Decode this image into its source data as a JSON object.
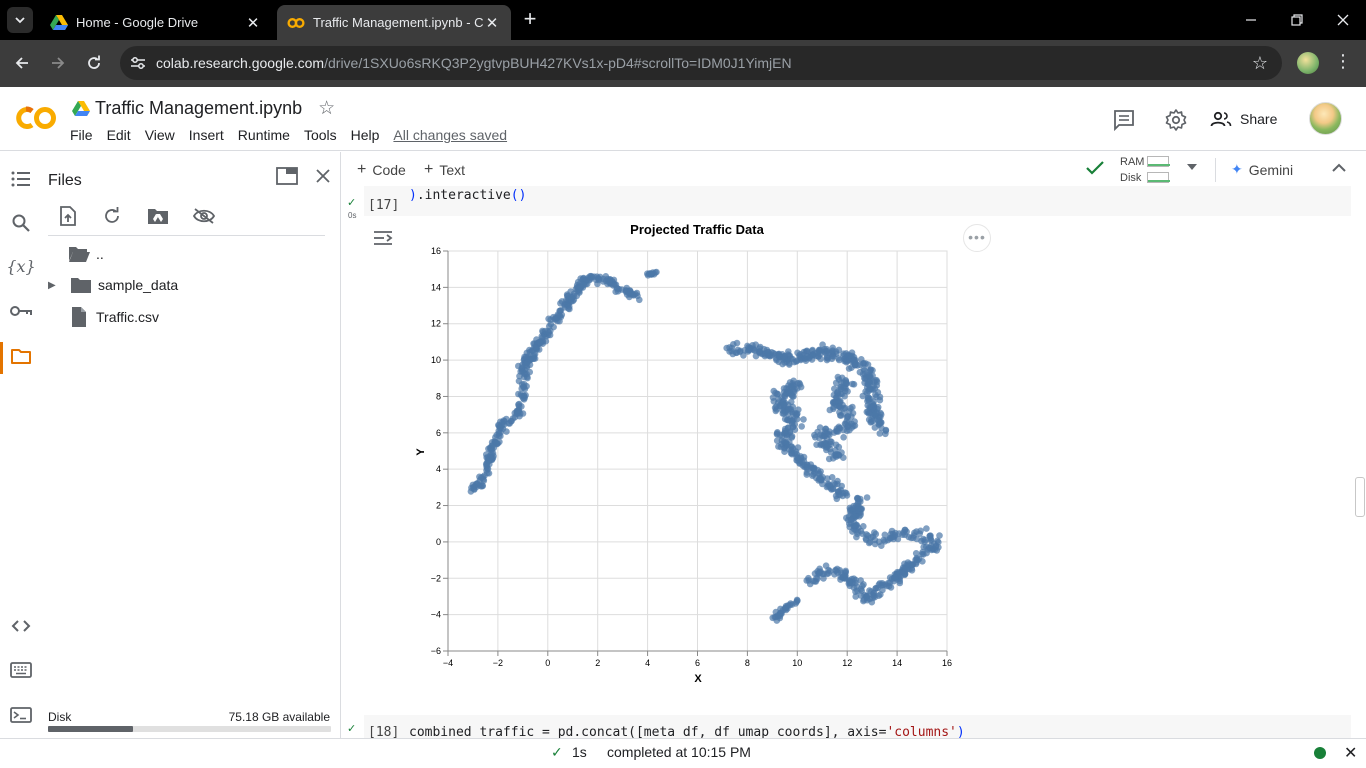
{
  "browser": {
    "tabs": [
      {
        "title": "Home - Google Drive",
        "icon": "google-drive-icon"
      },
      {
        "title": "Traffic Management.ipynb - Colab",
        "icon": "colab-icon",
        "active": true
      }
    ],
    "url_host": "colab.research.google.com",
    "url_path": "/drive/1SXUo6sRKQ3P2ygtvpBUH427KVs1x-pD4#scrollTo=IDM0J1YimjEN"
  },
  "colab": {
    "notebook_title": "Traffic Management.ipynb",
    "menu": [
      "File",
      "Edit",
      "View",
      "Insert",
      "Runtime",
      "Tools",
      "Help"
    ],
    "save_status": "All changes saved",
    "share_label": "Share"
  },
  "toolbar": {
    "code_label": "Code",
    "text_label": "Text",
    "ram_label": "RAM",
    "disk_label": "Disk",
    "gemini_label": "Gemini"
  },
  "files": {
    "title": "Files",
    "tree": [
      {
        "name": "..",
        "type": "folder-open"
      },
      {
        "name": "sample_data",
        "type": "folder"
      },
      {
        "name": "Traffic.csv",
        "type": "file"
      }
    ],
    "disk_label": "Disk",
    "disk_available": "75.18 GB available",
    "disk_used_fraction": 0.3
  },
  "cells": {
    "cell17": {
      "count": "[17]",
      "time": "0s",
      "code_tail": ").interactive()"
    },
    "cell18": {
      "count": "[18]",
      "code_a": "combined_traffic = pd.concat([meta_df, df_umap_coords], axis=",
      "code_str": "'columns'",
      "code_b": ")"
    }
  },
  "status": {
    "time": "1s",
    "completed": "completed at 10:15 PM"
  },
  "colors": {
    "point": "#4c78a8",
    "accent": "#e37400",
    "success": "#188038"
  },
  "chart_data": {
    "type": "scatter",
    "title": "Projected Traffic Data",
    "xlabel": "X",
    "ylabel": "Y",
    "xlim": [
      -4,
      16
    ],
    "ylim": [
      -6,
      16
    ],
    "xticks": [
      -4,
      -2,
      0,
      2,
      4,
      6,
      8,
      10,
      12,
      14,
      16
    ],
    "yticks": [
      -6,
      -4,
      -2,
      0,
      2,
      4,
      6,
      8,
      10,
      12,
      14,
      16
    ],
    "grid": true,
    "clusters": [
      {
        "path": [
          [
            -3.0,
            2.8
          ],
          [
            -2.6,
            3.5
          ],
          [
            -2.2,
            5.0
          ],
          [
            -1.8,
            6.5
          ],
          [
            -1.2,
            7.0
          ],
          [
            -1.0,
            8.0
          ],
          [
            -0.9,
            9.8
          ],
          [
            -0.3,
            11.0
          ],
          [
            0.4,
            12.5
          ],
          [
            1.1,
            13.7
          ],
          [
            1.7,
            14.6
          ],
          [
            2.4,
            14.3
          ],
          [
            3.3,
            13.7
          ],
          [
            3.8,
            13.4
          ]
        ],
        "spread": 0.32,
        "count": 360
      },
      {
        "path": [
          [
            4.0,
            14.7
          ],
          [
            4.3,
            14.8
          ]
        ],
        "spread": 0.12,
        "count": 14
      },
      {
        "path": [
          [
            7.3,
            10.6
          ],
          [
            8.6,
            10.5
          ],
          [
            9.8,
            10.0
          ],
          [
            11.0,
            10.5
          ],
          [
            12.2,
            10.0
          ],
          [
            12.9,
            9.2
          ],
          [
            13.0,
            7.7
          ],
          [
            13.2,
            6.6
          ],
          [
            13.6,
            6.0
          ]
        ],
        "spread": 0.45,
        "count": 300
      },
      {
        "path": [
          [
            10.0,
            8.8
          ],
          [
            9.3,
            7.6
          ],
          [
            9.9,
            6.6
          ],
          [
            9.4,
            5.6
          ],
          [
            10.3,
            4.3
          ],
          [
            11.1,
            3.3
          ],
          [
            12.1,
            2.4
          ]
        ],
        "spread": 0.55,
        "count": 220
      },
      {
        "path": [
          [
            12.0,
            9.0
          ],
          [
            11.5,
            7.6
          ],
          [
            12.3,
            6.4
          ],
          [
            11.0,
            5.8
          ],
          [
            11.7,
            4.5
          ]
        ],
        "spread": 0.5,
        "count": 140
      },
      {
        "path": [
          [
            12.6,
            2.5
          ],
          [
            12.2,
            1.0
          ],
          [
            13.0,
            0.0
          ],
          [
            14.5,
            0.5
          ],
          [
            15.5,
            0.0
          ],
          [
            14.6,
            -1.2
          ],
          [
            13.8,
            -2.2
          ],
          [
            12.8,
            -3.0
          ],
          [
            12.0,
            -2.0
          ],
          [
            11.2,
            -1.4
          ],
          [
            10.5,
            -2.4
          ]
        ],
        "spread": 0.45,
        "count": 300
      },
      {
        "path": [
          [
            10.0,
            -3.2
          ],
          [
            9.5,
            -3.7
          ],
          [
            9.1,
            -4.2
          ]
        ],
        "spread": 0.2,
        "count": 30
      }
    ]
  }
}
